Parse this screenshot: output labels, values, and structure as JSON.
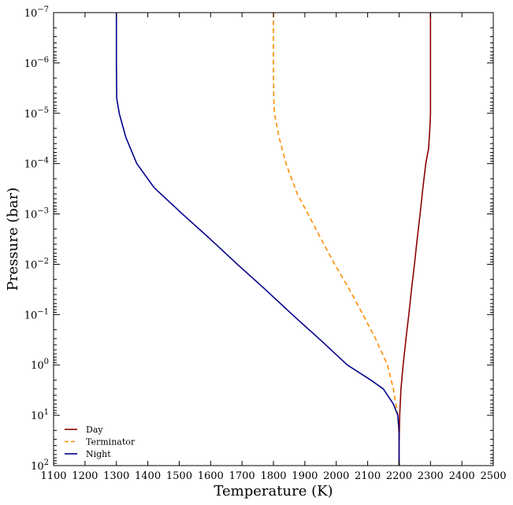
{
  "chart_data": {
    "type": "line",
    "xlabel": "Temperature (K)",
    "ylabel": "Pressure (bar)",
    "xlim": [
      1100,
      2500
    ],
    "ylim": [
      100,
      1e-07
    ],
    "yscale": "log",
    "x_ticks": [
      1100,
      1200,
      1300,
      1400,
      1500,
      1600,
      1700,
      1800,
      1900,
      2000,
      2100,
      2200,
      2300,
      2400,
      2500
    ],
    "x_tick_labels": [
      "1100",
      "1200",
      "1300",
      "1400",
      "1500",
      "1600",
      "1700",
      "1800",
      "1900",
      "2000",
      "2100",
      "2200",
      "2300",
      "2400",
      "2500"
    ],
    "y_ticks": [
      1e-07,
      1e-06,
      1e-05,
      0.0001,
      0.001,
      0.01,
      0.1,
      1,
      10,
      100
    ],
    "y_tick_bases": [
      "10",
      "10",
      "10",
      "10",
      "10",
      "10",
      "10",
      "10",
      "10",
      "10"
    ],
    "y_tick_exponents": [
      "−7",
      "−6",
      "−5",
      "−4",
      "−3",
      "−2",
      "−1",
      "0",
      "1",
      "2"
    ],
    "grid": false,
    "legend_position": "bottom-left",
    "series": [
      {
        "name": "Day",
        "color": "#8b0000",
        "dash": "solid",
        "points": [
          [
            2300,
            1e-07
          ],
          [
            2300,
            1e-06
          ],
          [
            2300,
            1e-05
          ],
          [
            2298,
            2e-05
          ],
          [
            2294,
            5e-05
          ],
          [
            2285,
            0.0001
          ],
          [
            2276,
            0.0003
          ],
          [
            2267,
            0.001
          ],
          [
            2258,
            0.003
          ],
          [
            2249,
            0.01
          ],
          [
            2240,
            0.03
          ],
          [
            2231,
            0.1
          ],
          [
            2222,
            0.3
          ],
          [
            2213,
            1
          ],
          [
            2206,
            3
          ],
          [
            2202,
            10
          ],
          [
            2201,
            20
          ],
          [
            2200,
            40
          ],
          [
            2200,
            100
          ]
        ]
      },
      {
        "name": "Terminator",
        "color": "#ff8c00",
        "dash": "dashed",
        "points": [
          [
            1800,
            1e-07
          ],
          [
            1800,
            1e-06
          ],
          [
            1801,
            5e-06
          ],
          [
            1803,
            1e-05
          ],
          [
            1818,
            3e-05
          ],
          [
            1840,
            0.0001
          ],
          [
            1876,
            0.0004
          ],
          [
            1910,
            0.001
          ],
          [
            1950,
            0.003
          ],
          [
            1995,
            0.01
          ],
          [
            2040,
            0.03
          ],
          [
            2085,
            0.1
          ],
          [
            2125,
            0.3
          ],
          [
            2163,
            1
          ],
          [
            2182,
            3
          ],
          [
            2196,
            10
          ],
          [
            2200,
            30
          ],
          [
            2200,
            100
          ]
        ]
      },
      {
        "name": "Night",
        "color": "#00008b",
        "dash": "solid",
        "points": [
          [
            1300,
            1e-07
          ],
          [
            1300,
            1e-06
          ],
          [
            1301,
            5e-06
          ],
          [
            1309,
            1e-05
          ],
          [
            1330,
            3e-05
          ],
          [
            1365,
            0.0001
          ],
          [
            1420,
            0.0003
          ],
          [
            1510,
            0.001
          ],
          [
            1595,
            0.003
          ],
          [
            1685,
            0.01
          ],
          [
            1770,
            0.03
          ],
          [
            1860,
            0.1
          ],
          [
            1945,
            0.3
          ],
          [
            2035,
            1
          ],
          [
            2110,
            2
          ],
          [
            2150,
            3
          ],
          [
            2182,
            6
          ],
          [
            2196,
            10
          ],
          [
            2200,
            20
          ],
          [
            2200,
            100
          ]
        ]
      }
    ]
  }
}
